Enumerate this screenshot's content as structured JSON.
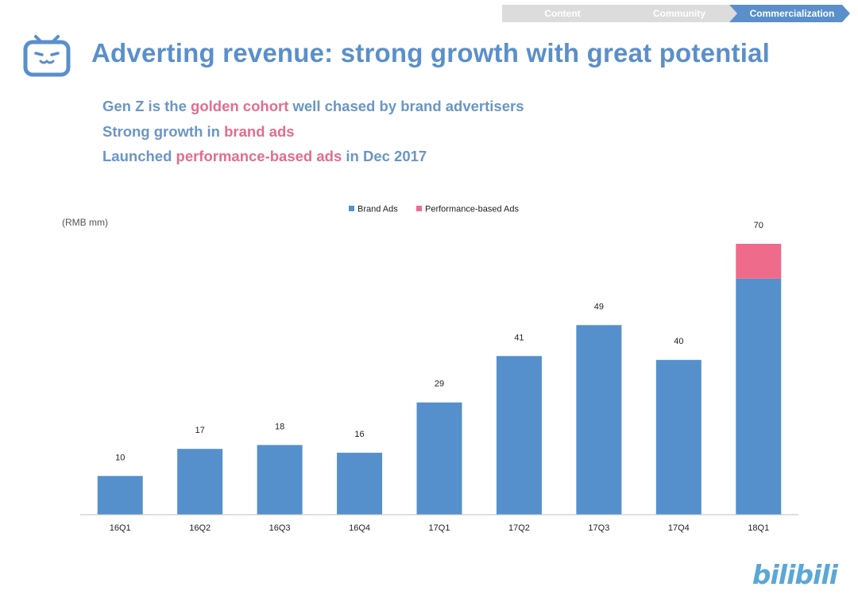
{
  "breadcrumb": {
    "items": [
      {
        "label": "Content"
      },
      {
        "label": "Community"
      },
      {
        "label": "Commercialization"
      }
    ]
  },
  "header": {
    "title": "Adverting revenue:  strong growth with great potential"
  },
  "bullets": [
    {
      "pre": "Gen Z is the ",
      "highlight": "golden cohort",
      "post": " well chased by brand advertisers"
    },
    {
      "pre": "Strong growth in ",
      "highlight": "brand ads",
      "post": ""
    },
    {
      "pre": "Launched ",
      "highlight": "performance-based ads",
      "post": " in Dec 2017"
    }
  ],
  "footer": {
    "logo_text": "bilibili"
  },
  "colors": {
    "accent": "#5a8fcb",
    "highlight": "#e36d8e",
    "brand_ads": "#5590cc",
    "performance_ads": "#ee6b8b"
  },
  "chart_data": {
    "type": "bar",
    "stacked": true,
    "unit_label": "(RMB mm)",
    "categories": [
      "16Q1",
      "16Q2",
      "16Q3",
      "16Q4",
      "17Q1",
      "17Q2",
      "17Q3",
      "17Q4",
      "18Q1"
    ],
    "series": [
      {
        "name": "Brand Ads",
        "color": "#5590cc",
        "values": [
          10,
          17,
          18,
          16,
          29,
          41,
          49,
          40,
          61
        ]
      },
      {
        "name": "Performance-based Ads",
        "color": "#ee6b8b",
        "values": [
          0,
          0,
          0,
          0,
          0,
          0,
          0,
          0,
          9
        ]
      }
    ],
    "totals": [
      "10",
      "17",
      "18",
      "16",
      "29",
      "41",
      "49",
      "40",
      "70"
    ],
    "ylim": [
      0,
      70
    ],
    "legend_position": "top-center",
    "grid": false
  }
}
